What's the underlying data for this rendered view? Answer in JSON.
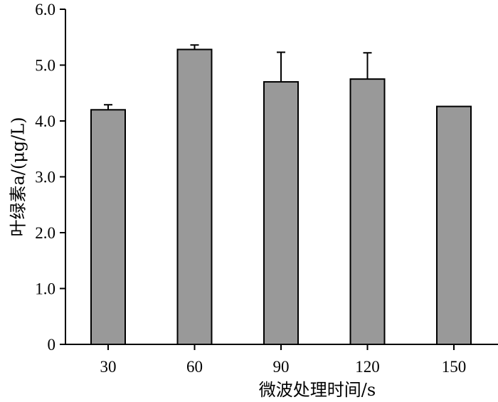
{
  "chart_data": {
    "type": "bar",
    "title": "",
    "xlabel": "微波处理时间/s",
    "ylabel": "叶绿素a/(μg/L)",
    "categories": [
      "30",
      "60",
      "90",
      "120",
      "150"
    ],
    "values": [
      4.2,
      5.28,
      4.7,
      4.75,
      4.26
    ],
    "error_plus": [
      0.09,
      0.08,
      0.53,
      0.47,
      0.0
    ],
    "ylim": [
      0,
      6
    ],
    "yticks": [
      0,
      1,
      2,
      3,
      4,
      5,
      6
    ],
    "ytick_labels": [
      "0",
      "1.0",
      "2.0",
      "3.0",
      "4.0",
      "5.0",
      "6.0"
    ],
    "grid": false,
    "legend": "none",
    "bar_color": "#999999",
    "bar_edge_color": "#000000"
  }
}
